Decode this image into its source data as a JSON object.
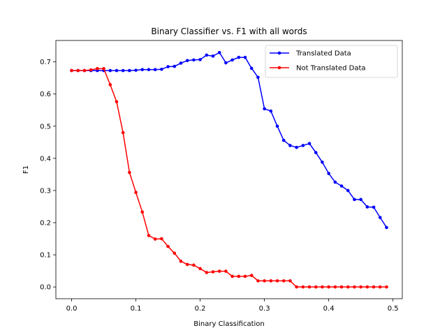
{
  "chart_data": {
    "type": "line",
    "title": "Binary Classifier vs. F1 with all words",
    "xlabel": "Binary Classification",
    "ylabel": "F1",
    "xlim": [
      -0.0245,
      0.5145
    ],
    "ylim": [
      -0.0365,
      0.7665
    ],
    "xticks": [
      0.0,
      0.1,
      0.2,
      0.3,
      0.4,
      0.5
    ],
    "xtick_labels": [
      "0.0",
      "0.1",
      "0.2",
      "0.3",
      "0.4",
      "0.5"
    ],
    "yticks": [
      0.0,
      0.1,
      0.2,
      0.3,
      0.4,
      0.5,
      0.6,
      0.7
    ],
    "ytick_labels": [
      "0.0",
      "0.1",
      "0.2",
      "0.3",
      "0.4",
      "0.5",
      "0.6",
      "0.7"
    ],
    "grid": false,
    "legend_position": "top-right",
    "x": [
      0.0,
      0.01,
      0.02,
      0.03,
      0.04,
      0.05,
      0.06,
      0.07,
      0.08,
      0.09,
      0.1,
      0.11,
      0.12,
      0.13,
      0.14,
      0.15,
      0.16,
      0.17,
      0.18,
      0.19,
      0.2,
      0.21,
      0.22,
      0.23,
      0.24,
      0.25,
      0.26,
      0.27,
      0.28,
      0.29,
      0.3,
      0.31,
      0.32,
      0.33,
      0.34,
      0.35,
      0.36,
      0.37,
      0.38,
      0.39,
      0.4,
      0.41,
      0.42,
      0.43,
      0.44,
      0.45,
      0.46,
      0.47,
      0.48,
      0.49
    ],
    "series": [
      {
        "name": "Translated Data",
        "color": "#0000ff",
        "marker": "circle",
        "values": [
          0.673,
          0.673,
          0.673,
          0.673,
          0.673,
          0.673,
          0.673,
          0.673,
          0.673,
          0.673,
          0.674,
          0.676,
          0.676,
          0.676,
          0.677,
          0.685,
          0.686,
          0.696,
          0.704,
          0.706,
          0.707,
          0.721,
          0.718,
          0.729,
          0.697,
          0.706,
          0.714,
          0.714,
          0.68,
          0.652,
          0.554,
          0.547,
          0.5,
          0.456,
          0.44,
          0.434,
          0.44,
          0.446,
          0.418,
          0.388,
          0.353,
          0.326,
          0.314,
          0.3,
          0.272,
          0.272,
          0.249,
          0.248,
          0.216,
          0.185
        ]
      },
      {
        "name": "Not Translated Data",
        "color": "#ff0000",
        "marker": "circle",
        "values": [
          0.673,
          0.673,
          0.673,
          0.675,
          0.679,
          0.679,
          0.629,
          0.576,
          0.48,
          0.356,
          0.294,
          0.233,
          0.16,
          0.149,
          0.15,
          0.126,
          0.105,
          0.08,
          0.07,
          0.068,
          0.057,
          0.045,
          0.047,
          0.049,
          0.049,
          0.033,
          0.033,
          0.033,
          0.036,
          0.019,
          0.019,
          0.019,
          0.019,
          0.019,
          0.019,
          0.0,
          0.0,
          0.0,
          0.0,
          0.0,
          0.0,
          0.0,
          0.0,
          0.0,
          0.0,
          0.0,
          0.0,
          0.0,
          0.0,
          0.0
        ]
      }
    ]
  }
}
